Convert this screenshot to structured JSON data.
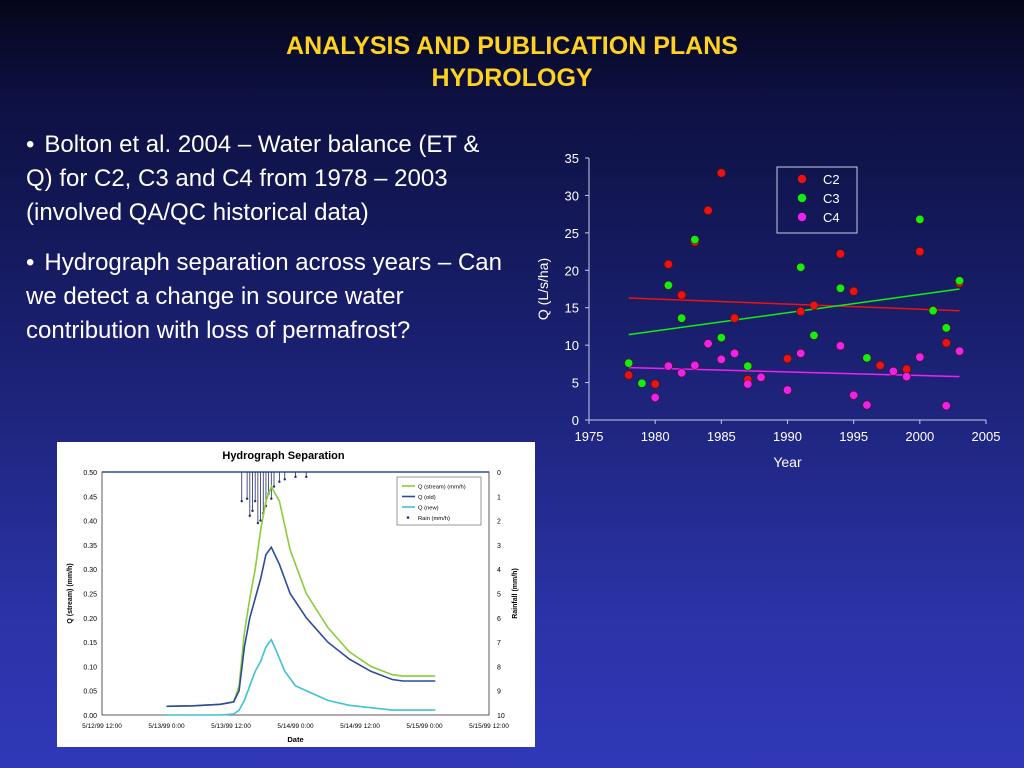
{
  "slide": {
    "title_line1": "ANALYSIS AND PUBLICATION PLANS",
    "title_line2": "HYDROLOGY",
    "bullets": [
      "Bolton et al. 2004 – Water balance (ET & Q) for C2, C3 and C4 from 1978 – 2003 (involved QA/QC historical data)",
      "Hydrograph separation across years – Can we detect a change in source water contribution with loss of permafrost?"
    ],
    "colors": {
      "background": "#1e2580",
      "title": "#ffd21f",
      "text": "#ffffff"
    }
  },
  "chart_data": [
    {
      "type": "scatter",
      "title": "",
      "xlabel": "Year",
      "ylabel": "Q (L/s/ha)",
      "xlim": [
        1975,
        2005
      ],
      "ylim": [
        0,
        35
      ],
      "xticks": [
        "1975",
        "1980",
        "1985",
        "1990",
        "1995",
        "2000",
        "2005"
      ],
      "yticks": [
        "0",
        "5",
        "10",
        "15",
        "20",
        "25",
        "30",
        "35"
      ],
      "grid": false,
      "legend_position": "top-right",
      "series": [
        {
          "name": "C2",
          "color": "#ee1111",
          "points": [
            [
              1978,
              6
            ],
            [
              1980,
              4.8
            ],
            [
              1981,
              20.8
            ],
            [
              1982,
              16.7
            ],
            [
              1983,
              23.8
            ],
            [
              1984,
              28
            ],
            [
              1985,
              33
            ],
            [
              1986,
              13.6
            ],
            [
              1987,
              5.4
            ],
            [
              1990,
              8.2
            ],
            [
              1991,
              14.5
            ],
            [
              1992,
              15.3
            ],
            [
              1994,
              22.2
            ],
            [
              1995,
              17.2
            ],
            [
              1997,
              7.3
            ],
            [
              1999,
              6.8
            ],
            [
              2000,
              22.5
            ],
            [
              2001,
              14.7
            ],
            [
              2002,
              10.3
            ],
            [
              2003,
              18.3
            ]
          ],
          "trend": [
            [
              1978,
              16.3
            ],
            [
              2003,
              14.6
            ]
          ]
        },
        {
          "name": "C3",
          "color": "#11ee11",
          "points": [
            [
              1978,
              7.6
            ],
            [
              1979,
              4.9
            ],
            [
              1981,
              18
            ],
            [
              1982,
              13.6
            ],
            [
              1983,
              24.1
            ],
            [
              1985,
              11
            ],
            [
              1987,
              7.2
            ],
            [
              1991,
              20.4
            ],
            [
              1992,
              11.3
            ],
            [
              1994,
              17.6
            ],
            [
              1996,
              8.3
            ],
            [
              2000,
              26.8
            ],
            [
              2001,
              14.6
            ],
            [
              2002,
              12.3
            ],
            [
              2003,
              18.6
            ]
          ],
          "trend": [
            [
              1978,
              11.4
            ],
            [
              2003,
              17.5
            ]
          ]
        },
        {
          "name": "C4",
          "color": "#ee22ee",
          "points": [
            [
              1980,
              3
            ],
            [
              1981,
              7.2
            ],
            [
              1982,
              6.3
            ],
            [
              1983,
              7.3
            ],
            [
              1984,
              10.2
            ],
            [
              1985,
              8.1
            ],
            [
              1986,
              8.9
            ],
            [
              1987,
              4.8
            ],
            [
              1988,
              5.7
            ],
            [
              1990,
              4
            ],
            [
              1991,
              8.9
            ],
            [
              1994,
              9.9
            ],
            [
              1995,
              3.3
            ],
            [
              1996,
              2
            ],
            [
              1998,
              6.5
            ],
            [
              1999,
              5.8
            ],
            [
              2000,
              8.4
            ],
            [
              2002,
              1.9
            ],
            [
              2003,
              9.2
            ]
          ],
          "trend": [
            [
              1978,
              7
            ],
            [
              2003,
              5.8
            ]
          ]
        }
      ]
    },
    {
      "type": "line",
      "title": "Hydrograph Separation",
      "xlabel": "Date",
      "ylabel": "Q (stream) (mm/h)",
      "y2label": "Rainfall (mm/h)",
      "xticks": [
        "5/12/99 12:00",
        "5/13/99 0:00",
        "5/13/99 12:00",
        "5/14/99 0:00",
        "5/14/99 12:00",
        "5/15/99 0:00",
        "5/15/99 12:00"
      ],
      "yticks": [
        "0.00",
        "0.05",
        "0.10",
        "0.15",
        "0.20",
        "0.25",
        "0.30",
        "0.35",
        "0.40",
        "0.45",
        "0.50"
      ],
      "y2ticks": [
        "0",
        "1",
        "2",
        "3",
        "4",
        "5",
        "6",
        "7",
        "8",
        "9",
        "10"
      ],
      "ylim": [
        0,
        0.5
      ],
      "y2lim_inverted": [
        0,
        10
      ],
      "xlim_hours": [
        0,
        72
      ],
      "legend_position": "top-right",
      "series": [
        {
          "name": "Q (stream) (mm/h)",
          "color": "#8dcb3c",
          "x_hours": [
            12,
            17,
            22,
            24.5,
            25.5,
            26.5,
            27.5,
            28.5,
            29.5,
            30.5,
            31.5,
            33,
            35,
            38,
            42,
            46,
            50,
            54,
            56,
            62
          ],
          "y": [
            0.018,
            0.019,
            0.022,
            0.027,
            0.06,
            0.17,
            0.24,
            0.3,
            0.38,
            0.44,
            0.47,
            0.44,
            0.34,
            0.25,
            0.18,
            0.13,
            0.1,
            0.083,
            0.08,
            0.08
          ]
        },
        {
          "name": "Q (old)",
          "color": "#2c4b9a",
          "x_hours": [
            12,
            17,
            22,
            24.5,
            25.5,
            26.5,
            27.5,
            28.5,
            29.5,
            30.5,
            31.5,
            33,
            35,
            38,
            42,
            46,
            50,
            54,
            56,
            62
          ],
          "y": [
            0.018,
            0.019,
            0.022,
            0.027,
            0.05,
            0.14,
            0.2,
            0.24,
            0.28,
            0.33,
            0.345,
            0.31,
            0.25,
            0.2,
            0.15,
            0.115,
            0.09,
            0.073,
            0.07,
            0.07
          ]
        },
        {
          "name": "Q (new)",
          "color": "#3cc4d0",
          "x_hours": [
            12,
            22,
            24.5,
            25.5,
            26.5,
            27.5,
            28.5,
            29.5,
            30.5,
            31.5,
            32.5,
            34,
            36,
            39,
            42,
            46,
            50,
            54,
            56,
            62
          ],
          "y": [
            0.0,
            0.0,
            0.002,
            0.01,
            0.03,
            0.06,
            0.09,
            0.11,
            0.14,
            0.155,
            0.13,
            0.09,
            0.06,
            0.045,
            0.03,
            0.02,
            0.015,
            0.01,
            0.01,
            0.01
          ]
        },
        {
          "name": "Rain (mm/h)",
          "color": "#1f2a6e",
          "x_hours": [
            26,
            27,
            27.5,
            28,
            28.5,
            29,
            29.5,
            30,
            30.5,
            31,
            31.5,
            32,
            33,
            34,
            36,
            38
          ],
          "y": [
            1.2,
            1.1,
            1.8,
            1.6,
            1.2,
            2.1,
            2.0,
            1.7,
            1.4,
            0.9,
            1.1,
            0.6,
            0.4,
            0.3,
            0.2,
            0.2
          ]
        }
      ]
    }
  ]
}
